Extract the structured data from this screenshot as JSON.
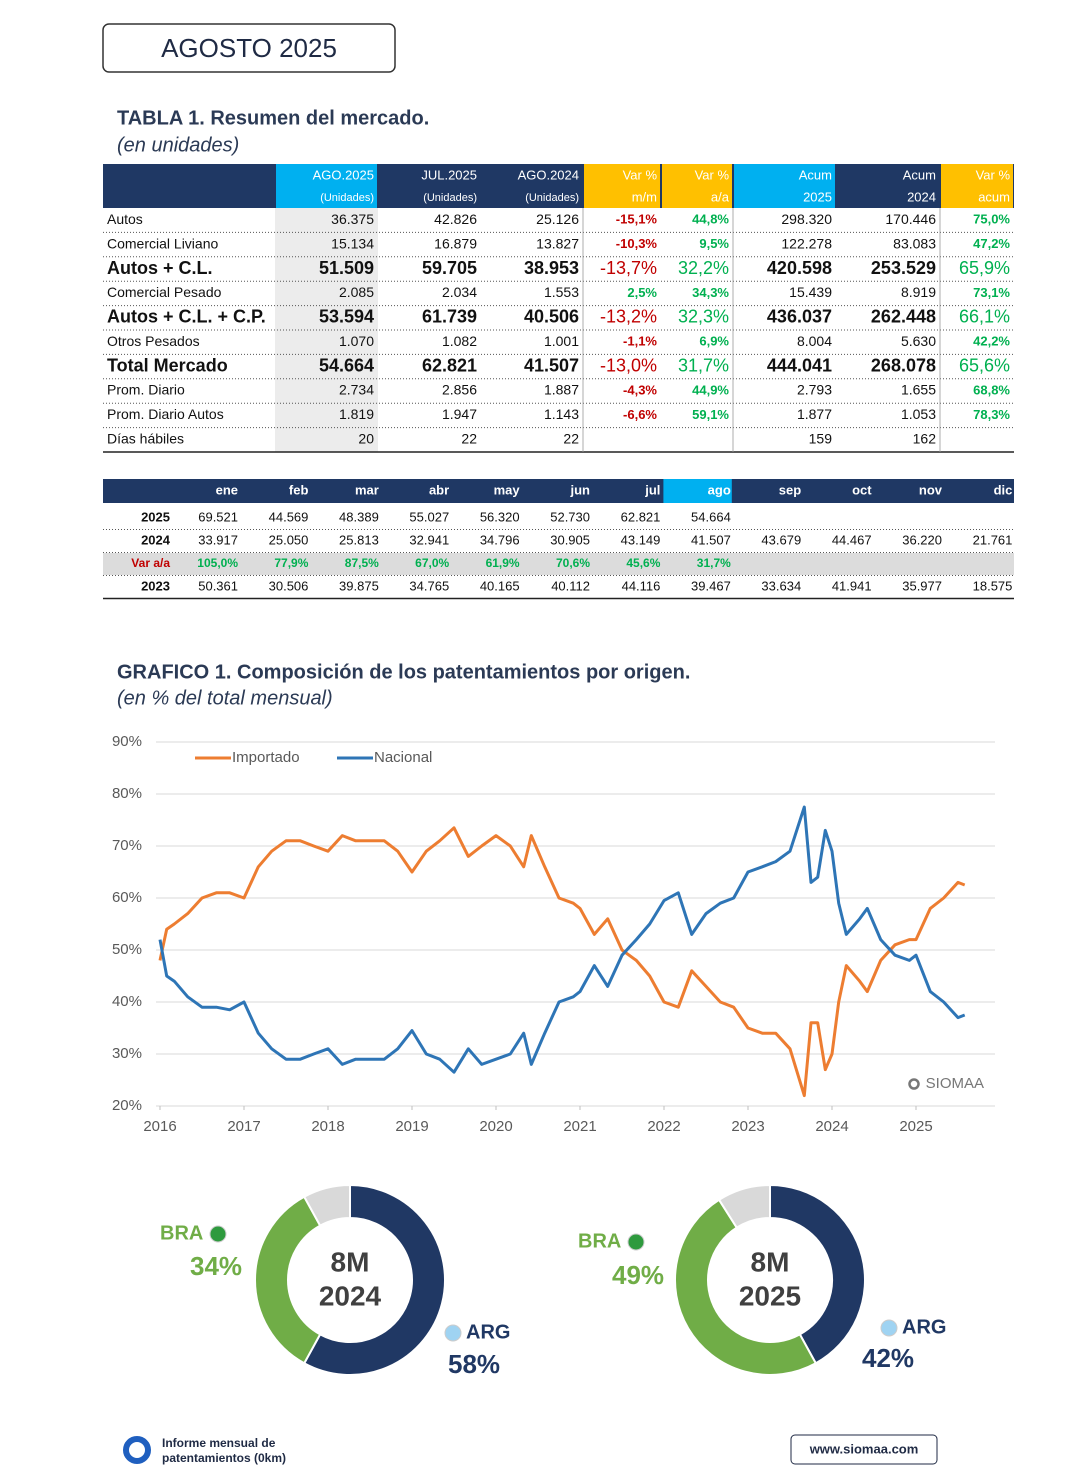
{
  "header": {
    "title": "AGOSTO 2025"
  },
  "table1": {
    "title": "TABLA 1. Resumen del mercado.",
    "subtitle": "(en unidades)",
    "columns": [
      [
        "AGO.2025",
        "(Unidades)"
      ],
      [
        "JUL.2025",
        "(Unidades)"
      ],
      [
        "AGO.2024",
        "(Unidades)"
      ],
      [
        "Var %",
        "m/m"
      ],
      [
        "Var %",
        "a/a"
      ],
      [
        "Acum",
        "2025"
      ],
      [
        "Acum",
        "2024"
      ],
      [
        "Var %",
        "acum"
      ]
    ],
    "rows": [
      {
        "label": "Autos",
        "cells": [
          "36.375",
          "42.826",
          "25.126",
          "-15,1%",
          "44,8%",
          "298.320",
          "170.446",
          "75,0%"
        ]
      },
      {
        "label": "Comercial Liviano",
        "cells": [
          "15.134",
          "16.879",
          "13.827",
          "-10,3%",
          "9,5%",
          "122.278",
          "83.083",
          "47,2%"
        ]
      },
      {
        "label": "Autos + C.L.",
        "cells": [
          "51.509",
          "59.705",
          "38.953",
          "-13,7%",
          "32,2%",
          "420.598",
          "253.529",
          "65,9%"
        ]
      },
      {
        "label": "Comercial Pesado",
        "cells": [
          "2.085",
          "2.034",
          "1.553",
          "2,5%",
          "34,3%",
          "15.439",
          "8.919",
          "73,1%"
        ]
      },
      {
        "label": "Autos + C.L. + C.P.",
        "cells": [
          "53.594",
          "61.739",
          "40.506",
          "-13,2%",
          "32,3%",
          "436.037",
          "262.448",
          "66,1%"
        ]
      },
      {
        "label": "Otros Pesados",
        "cells": [
          "1.070",
          "1.082",
          "1.001",
          "-1,1%",
          "6,9%",
          "8.004",
          "5.630",
          "42,2%"
        ]
      },
      {
        "label": "Total Mercado",
        "cells": [
          "54.664",
          "62.821",
          "41.507",
          "-13,0%",
          "31,7%",
          "444.041",
          "268.078",
          "65,6%"
        ]
      },
      {
        "label": "Prom. Diario",
        "cells": [
          "2.734",
          "2.856",
          "1.887",
          "-4,3%",
          "44,9%",
          "2.793",
          "1.655",
          "68,8%"
        ]
      },
      {
        "label": "Prom. Diario Autos",
        "cells": [
          "1.819",
          "1.947",
          "1.143",
          "-6,6%",
          "59,1%",
          "1.877",
          "1.053",
          "78,3%"
        ]
      },
      {
        "label": "Días hábiles",
        "cells": [
          "20",
          "22",
          "22",
          null,
          null,
          "159",
          "162",
          null
        ]
      }
    ]
  },
  "table2": {
    "months": [
      "ene",
      "feb",
      "mar",
      "abr",
      "may",
      "jun",
      "jul",
      "ago",
      "sep",
      "oct",
      "nov",
      "dic"
    ],
    "rows": [
      {
        "label": "2025",
        "cells": [
          "69.521",
          "44.569",
          "48.389",
          "55.027",
          "56.320",
          "52.730",
          "62.821",
          "54.664"
        ]
      },
      {
        "label": "2024",
        "cells": [
          "33.917",
          "25.050",
          "25.813",
          "32.941",
          "34.796",
          "30.905",
          "43.149",
          "41.507",
          "43.679",
          "44.467",
          "36.220",
          "21.761"
        ]
      },
      {
        "label": "Var a/a",
        "cells": [
          "105,0%",
          "77,9%",
          "87,5%",
          "67,0%",
          "61,9%",
          "70,6%",
          "45,6%",
          "31,7%"
        ]
      },
      {
        "label": "2023",
        "cells": [
          "50.361",
          "30.506",
          "39.875",
          "34.765",
          "40.165",
          "40.112",
          "44.116",
          "39.467",
          "33.634",
          "41.941",
          "35.977",
          "18.575"
        ]
      }
    ]
  },
  "chart_data": [
    {
      "type": "line",
      "title": "GRAFICO 1. Composición de los patentamientos por origen.",
      "subtitle": "(en % del total mensual)",
      "annotations": [
        "SIOMAA"
      ],
      "x": [
        2016.0,
        2016.08,
        2016.17,
        2016.33,
        2016.5,
        2016.67,
        2016.83,
        2017.0,
        2017.17,
        2017.33,
        2017.5,
        2017.67,
        2017.83,
        2018.0,
        2018.17,
        2018.33,
        2018.5,
        2018.67,
        2018.83,
        2019.0,
        2019.17,
        2019.33,
        2019.5,
        2019.67,
        2019.83,
        2020.0,
        2020.17,
        2020.33,
        2020.42,
        2020.58,
        2020.75,
        2020.92,
        2021.0,
        2021.17,
        2021.33,
        2021.5,
        2021.67,
        2021.83,
        2022.0,
        2022.17,
        2022.33,
        2022.5,
        2022.67,
        2022.83,
        2023.0,
        2023.17,
        2023.33,
        2023.5,
        2023.67,
        2023.75,
        2023.83,
        2023.92,
        2024.0,
        2024.08,
        2024.17,
        2024.33,
        2024.42,
        2024.58,
        2024.75,
        2024.92,
        2025.0,
        2025.17,
        2025.33,
        2025.5,
        2025.58
      ],
      "series": [
        {
          "name": "Importado",
          "color": "#ed7d31",
          "values": [
            48,
            54,
            55,
            57,
            60,
            61,
            61,
            60,
            66,
            69,
            71,
            71,
            70,
            69,
            72,
            71,
            71,
            71,
            69,
            65,
            69,
            71,
            73.5,
            68,
            70,
            72,
            70,
            66,
            72,
            66,
            60,
            59,
            58,
            53,
            56,
            50,
            48,
            45,
            40,
            39,
            46,
            43,
            40,
            39,
            35,
            34,
            34,
            31,
            22,
            36,
            36,
            27,
            30,
            40,
            47,
            44,
            42,
            48,
            51,
            52,
            52,
            58,
            60,
            63,
            62.5
          ]
        },
        {
          "name": "Nacional",
          "color": "#2e75b6",
          "values": [
            52,
            45,
            44,
            41,
            39,
            39,
            38.5,
            40,
            34,
            31,
            29,
            29,
            30,
            31,
            28,
            29,
            29,
            29,
            31,
            34.5,
            30,
            29,
            26.5,
            31,
            28,
            29,
            30,
            34,
            28,
            34,
            40,
            41,
            42,
            47,
            43,
            49,
            52,
            55,
            59.5,
            61,
            53,
            57,
            59,
            60,
            65,
            66,
            67,
            69,
            77.5,
            63,
            64,
            73,
            69,
            59,
            53,
            56,
            58,
            52,
            49,
            48,
            49,
            42,
            40,
            37,
            37.5
          ]
        }
      ],
      "xlim": [
        2016,
        2026
      ],
      "xticks": [
        2016,
        2017,
        2018,
        2019,
        2020,
        2021,
        2022,
        2023,
        2024,
        2025
      ],
      "ylim": [
        20,
        90
      ],
      "yticks": [
        {
          "value": 20,
          "label": "20%"
        },
        {
          "value": 30,
          "label": "30%"
        },
        {
          "value": 40,
          "label": "40%"
        },
        {
          "value": 50,
          "label": "50%"
        },
        {
          "value": 60,
          "label": "60%"
        },
        {
          "value": 70,
          "label": "70%"
        },
        {
          "value": 80,
          "label": "80%"
        },
        {
          "value": 90,
          "label": "90%"
        }
      ],
      "grid": true,
      "legend": "top"
    },
    {
      "type": "pie",
      "center_text": [
        "8M",
        "2024"
      ],
      "categories": [
        "ARG",
        "BRA",
        null
      ],
      "values": [
        58,
        34,
        8
      ],
      "value_labels": [
        "58%",
        "34%",
        null
      ],
      "colors": [
        "#203864",
        "#70ad47",
        "#d9d9d9"
      ]
    },
    {
      "type": "pie",
      "center_text": [
        "8M",
        "2025"
      ],
      "categories": [
        "ARG",
        "BRA",
        null
      ],
      "values": [
        42,
        49,
        9
      ],
      "value_labels": [
        "42%",
        "49%",
        null
      ],
      "colors": [
        "#203864",
        "#70ad47",
        "#d9d9d9"
      ]
    }
  ],
  "footer": {
    "report": [
      "Informe mensual de",
      "patentamientos (0km)"
    ],
    "url": "www.siomaa.com"
  }
}
